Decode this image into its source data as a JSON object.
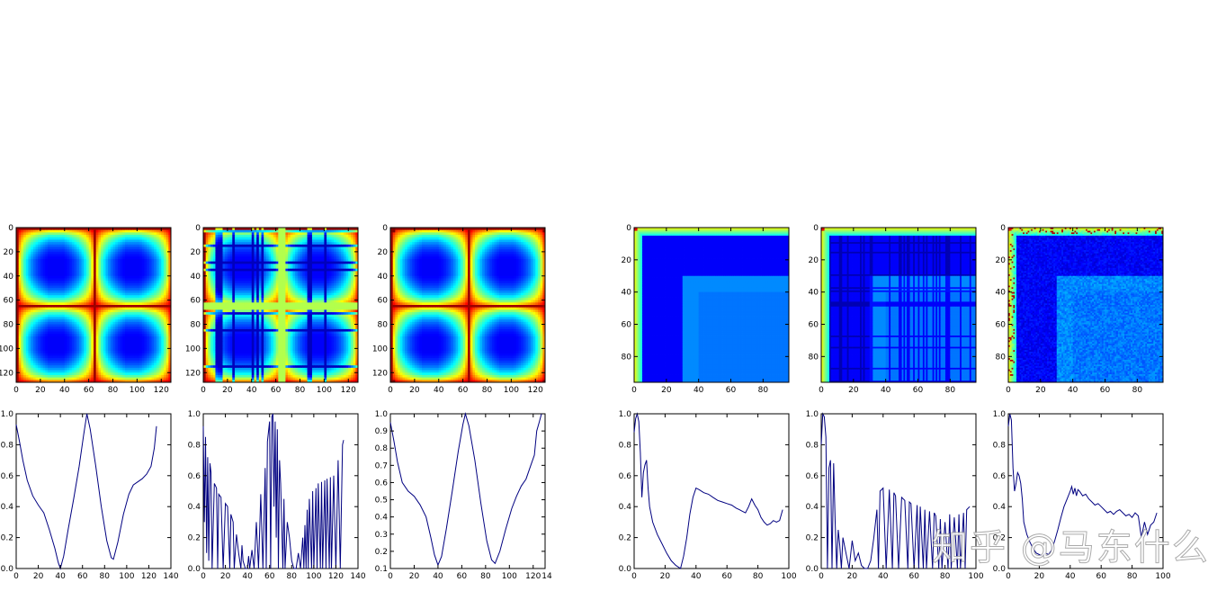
{
  "chart_data": [
    {
      "type": "heatmap",
      "id": "heat-1",
      "pattern": "cross",
      "size": 128,
      "center": 64,
      "x_ticks": [
        0,
        20,
        40,
        60,
        80,
        100,
        120
      ],
      "y_ticks": [
        0,
        20,
        40,
        60,
        80,
        100,
        120
      ],
      "xlim": [
        0,
        128
      ],
      "ylim": [
        128,
        0
      ]
    },
    {
      "type": "heatmap",
      "id": "heat-2",
      "pattern": "cross-striped",
      "size": 128,
      "center": 64,
      "x_ticks": [
        0,
        20,
        40,
        60,
        80,
        100,
        120
      ],
      "y_ticks": [
        0,
        20,
        40,
        60,
        80,
        100,
        120
      ],
      "xlim": [
        0,
        128
      ],
      "ylim": [
        128,
        0
      ]
    },
    {
      "type": "heatmap",
      "id": "heat-3",
      "pattern": "cross",
      "size": 128,
      "center": 64,
      "x_ticks": [
        0,
        20,
        40,
        60,
        80,
        100,
        120
      ],
      "y_ticks": [
        0,
        20,
        40,
        60,
        80,
        100,
        120
      ],
      "xlim": [
        0,
        128
      ],
      "ylim": [
        128,
        0
      ]
    },
    {
      "type": "heatmap",
      "id": "heat-4",
      "pattern": "corner",
      "size": 96,
      "x_ticks": [
        0,
        20,
        40,
        60,
        80
      ],
      "y_ticks": [
        0,
        20,
        40,
        60,
        80
      ],
      "xlim": [
        0,
        96
      ],
      "ylim": [
        96,
        0
      ]
    },
    {
      "type": "heatmap",
      "id": "heat-5",
      "pattern": "corner-striped",
      "size": 96,
      "x_ticks": [
        0,
        20,
        40,
        60,
        80
      ],
      "y_ticks": [
        0,
        20,
        40,
        60,
        80
      ],
      "xlim": [
        0,
        96
      ],
      "ylim": [
        96,
        0
      ]
    },
    {
      "type": "heatmap",
      "id": "heat-6",
      "pattern": "corner-noisy",
      "size": 96,
      "x_ticks": [
        0,
        20,
        40,
        60,
        80
      ],
      "y_ticks": [
        0,
        20,
        40,
        60,
        80
      ],
      "xlim": [
        0,
        96
      ],
      "ylim": [
        96,
        0
      ]
    },
    {
      "type": "line",
      "id": "line-1",
      "xlim": [
        0,
        140
      ],
      "ylim": [
        0,
        1.0
      ],
      "x_ticks": [
        0,
        20,
        40,
        60,
        80,
        100,
        120,
        140
      ],
      "y_ticks": [
        0.0,
        0.2,
        0.4,
        0.6,
        0.8,
        1.0
      ],
      "series": [
        {
          "color": "#000080",
          "x": [
            0,
            3,
            6,
            10,
            15,
            20,
            25,
            30,
            35,
            38,
            40,
            43,
            47,
            52,
            57,
            61,
            64,
            67,
            72,
            77,
            82,
            86,
            88,
            92,
            97,
            102,
            106,
            110,
            114,
            118,
            122,
            125,
            127
          ],
          "y": [
            0.93,
            0.82,
            0.7,
            0.57,
            0.47,
            0.41,
            0.36,
            0.25,
            0.13,
            0.04,
            0.0,
            0.08,
            0.25,
            0.45,
            0.66,
            0.86,
            1.0,
            0.9,
            0.66,
            0.4,
            0.18,
            0.07,
            0.06,
            0.17,
            0.35,
            0.48,
            0.54,
            0.56,
            0.58,
            0.61,
            0.66,
            0.78,
            0.92
          ]
        }
      ]
    },
    {
      "type": "line",
      "id": "line-2",
      "xlim": [
        0,
        140
      ],
      "ylim": [
        0,
        1.0
      ],
      "x_ticks": [
        0,
        20,
        40,
        60,
        80,
        100,
        120,
        140
      ],
      "y_ticks": [
        0.0,
        0.2,
        0.4,
        0.6,
        0.8,
        1.0
      ],
      "series": [
        {
          "color": "#000080",
          "x": [
            0,
            1,
            2,
            3,
            4,
            5,
            6,
            7,
            8,
            10,
            12,
            13,
            14,
            16,
            18,
            20,
            22,
            24,
            25,
            27,
            28,
            30,
            32,
            34,
            35,
            36,
            38,
            40,
            41,
            42,
            44,
            46,
            48,
            50,
            52,
            54,
            56,
            57,
            58,
            60,
            61,
            62,
            63,
            64,
            65,
            66,
            67,
            68,
            69,
            70,
            72,
            73,
            74,
            76,
            78,
            80,
            82,
            84,
            86,
            88,
            90,
            91,
            92,
            93,
            94,
            95,
            96,
            98,
            99,
            100,
            102,
            103,
            104,
            106,
            107,
            108,
            110,
            111,
            112,
            114,
            115,
            116,
            118,
            120,
            122,
            124,
            126,
            127
          ],
          "y": [
            0.92,
            0.3,
            0.85,
            0.1,
            0.72,
            0.05,
            0.68,
            0.62,
            0.0,
            0.55,
            0.52,
            0.0,
            0.48,
            0.46,
            0.0,
            0.42,
            0.4,
            0.0,
            0.35,
            0.3,
            0.0,
            0.22,
            0.1,
            0.0,
            0.15,
            0.05,
            0.0,
            0.0,
            0.08,
            0.0,
            0.12,
            0.0,
            0.3,
            0.0,
            0.48,
            0.0,
            0.65,
            0.0,
            0.82,
            0.95,
            0.0,
            0.98,
            1.0,
            0.4,
            0.95,
            0.2,
            0.9,
            0.0,
            0.7,
            0.55,
            0.0,
            0.45,
            0.0,
            0.3,
            0.2,
            0.05,
            0.0,
            0.0,
            0.1,
            0.0,
            0.2,
            0.0,
            0.28,
            0.0,
            0.38,
            0.0,
            0.45,
            0.0,
            0.5,
            0.0,
            0.52,
            0.0,
            0.55,
            0.0,
            0.56,
            0.0,
            0.57,
            0.0,
            0.58,
            0.0,
            0.59,
            0.0,
            0.6,
            0.0,
            0.7,
            0.0,
            0.8,
            0.83
          ]
        }
      ]
    },
    {
      "type": "line",
      "id": "line-3",
      "xlim": [
        0,
        130
      ],
      "ylim": [
        0.1,
        1.0
      ],
      "x_ticks": [
        0,
        20,
        40,
        60,
        80,
        100,
        120
      ],
      "x_extra_label": "14",
      "y_ticks": [
        0.1,
        0.2,
        0.3,
        0.4,
        0.5,
        0.6,
        0.7,
        0.8,
        0.9,
        1.0
      ],
      "series": [
        {
          "color": "#000080",
          "x": [
            0,
            3,
            6,
            10,
            15,
            20,
            25,
            30,
            34,
            37,
            40,
            43,
            47,
            52,
            57,
            61,
            63,
            66,
            71,
            76,
            81,
            85,
            88,
            92,
            97,
            102,
            106,
            110,
            114,
            118,
            121,
            123,
            125,
            127
          ],
          "y": [
            0.95,
            0.84,
            0.72,
            0.6,
            0.55,
            0.52,
            0.47,
            0.4,
            0.28,
            0.18,
            0.12,
            0.17,
            0.33,
            0.55,
            0.78,
            0.94,
            1.0,
            0.93,
            0.73,
            0.48,
            0.26,
            0.15,
            0.13,
            0.2,
            0.33,
            0.45,
            0.52,
            0.58,
            0.62,
            0.7,
            0.76,
            0.9,
            0.95,
            1.0
          ]
        }
      ]
    },
    {
      "type": "line",
      "id": "line-4",
      "xlim": [
        0,
        100
      ],
      "ylim": [
        0,
        1.0
      ],
      "x_ticks": [
        0,
        20,
        40,
        60,
        80,
        100
      ],
      "y_ticks": [
        0.0,
        0.2,
        0.4,
        0.6,
        0.8,
        1.0
      ],
      "series": [
        {
          "color": "#000080",
          "x": [
            0,
            1,
            2,
            3,
            4,
            5,
            6,
            7,
            8,
            9,
            10,
            12,
            15,
            18,
            21,
            24,
            27,
            30,
            32,
            34,
            36,
            38,
            40,
            42,
            45,
            48,
            51,
            54,
            57,
            60,
            63,
            66,
            68,
            70,
            72,
            74,
            76,
            78,
            80,
            82,
            84,
            86,
            88,
            90,
            92,
            94,
            96
          ],
          "y": [
            0.88,
            0.97,
            1.0,
            0.95,
            0.75,
            0.46,
            0.62,
            0.67,
            0.7,
            0.52,
            0.4,
            0.3,
            0.22,
            0.16,
            0.1,
            0.05,
            0.02,
            0.0,
            0.08,
            0.2,
            0.35,
            0.46,
            0.52,
            0.51,
            0.49,
            0.48,
            0.46,
            0.44,
            0.43,
            0.42,
            0.41,
            0.39,
            0.38,
            0.37,
            0.36,
            0.4,
            0.45,
            0.41,
            0.38,
            0.33,
            0.3,
            0.28,
            0.29,
            0.31,
            0.3,
            0.31,
            0.38
          ]
        }
      ]
    },
    {
      "type": "line",
      "id": "line-5",
      "xlim": [
        0,
        100
      ],
      "ylim": [
        0,
        1.0
      ],
      "x_ticks": [
        0,
        20,
        40,
        60,
        80,
        100
      ],
      "y_ticks": [
        0.0,
        0.2,
        0.4,
        0.6,
        0.8,
        1.0
      ],
      "series": [
        {
          "color": "#000080",
          "x": [
            0,
            1,
            2,
            3,
            4,
            5,
            6,
            7,
            8,
            9,
            10,
            11,
            12,
            13,
            14,
            16,
            18,
            20,
            22,
            24,
            26,
            28,
            30,
            32,
            34,
            36,
            37,
            38,
            40,
            42,
            44,
            46,
            47,
            48,
            50,
            52,
            54,
            56,
            57,
            58,
            60,
            62,
            63,
            64,
            66,
            67,
            68,
            70,
            72,
            73,
            74,
            76,
            77,
            78,
            80,
            82,
            83,
            84,
            86,
            88,
            89,
            90,
            92,
            93,
            94,
            96
          ],
          "y": [
            0.8,
            1.0,
            0.98,
            0.85,
            0.0,
            0.65,
            0.7,
            0.0,
            0.68,
            0.3,
            0.0,
            0.25,
            0.15,
            0.0,
            0.2,
            0.1,
            0.0,
            0.18,
            0.05,
            0.1,
            0.02,
            0.0,
            0.0,
            0.05,
            0.2,
            0.38,
            0.0,
            0.5,
            0.52,
            0.0,
            0.51,
            0.0,
            0.49,
            0.47,
            0.0,
            0.46,
            0.44,
            0.0,
            0.43,
            0.42,
            0.0,
            0.41,
            0.0,
            0.4,
            0.0,
            0.38,
            0.0,
            0.37,
            0.0,
            0.36,
            0.34,
            0.0,
            0.32,
            0.0,
            0.3,
            0.0,
            0.35,
            0.0,
            0.33,
            0.0,
            0.35,
            0.0,
            0.36,
            0.0,
            0.38,
            0.4
          ]
        }
      ]
    },
    {
      "type": "line",
      "id": "line-6",
      "xlim": [
        0,
        100
      ],
      "ylim": [
        0,
        1.0
      ],
      "x_ticks": [
        0,
        20,
        40,
        60,
        80,
        100
      ],
      "y_ticks": [
        0.0,
        0.2,
        0.4,
        0.6,
        0.8,
        1.0
      ],
      "series": [
        {
          "color": "#000080",
          "x": [
            0,
            1,
            2,
            3,
            4,
            5,
            6,
            7,
            8,
            9,
            10,
            12,
            14,
            16,
            18,
            20,
            22,
            24,
            26,
            28,
            30,
            32,
            34,
            36,
            38,
            40,
            41,
            42,
            43,
            44,
            45,
            46,
            48,
            50,
            52,
            54,
            56,
            58,
            60,
            62,
            64,
            66,
            68,
            70,
            72,
            74,
            76,
            78,
            80,
            82,
            84,
            86,
            88,
            90,
            92,
            94,
            96
          ],
          "y": [
            0.92,
            1.0,
            0.96,
            0.65,
            0.5,
            0.55,
            0.62,
            0.6,
            0.55,
            0.45,
            0.3,
            0.22,
            0.17,
            0.13,
            0.1,
            0.09,
            0.08,
            0.1,
            0.09,
            0.12,
            0.18,
            0.25,
            0.33,
            0.4,
            0.45,
            0.5,
            0.53,
            0.48,
            0.52,
            0.47,
            0.51,
            0.5,
            0.47,
            0.48,
            0.45,
            0.43,
            0.41,
            0.42,
            0.4,
            0.38,
            0.36,
            0.37,
            0.35,
            0.37,
            0.38,
            0.36,
            0.34,
            0.35,
            0.33,
            0.36,
            0.34,
            0.2,
            0.3,
            0.22,
            0.28,
            0.3,
            0.36
          ]
        }
      ]
    }
  ],
  "colors": {
    "line": "#000080",
    "axis": "#000000",
    "background": "#ffffff"
  },
  "watermark": {
    "text": "知乎 @马东什么"
  }
}
